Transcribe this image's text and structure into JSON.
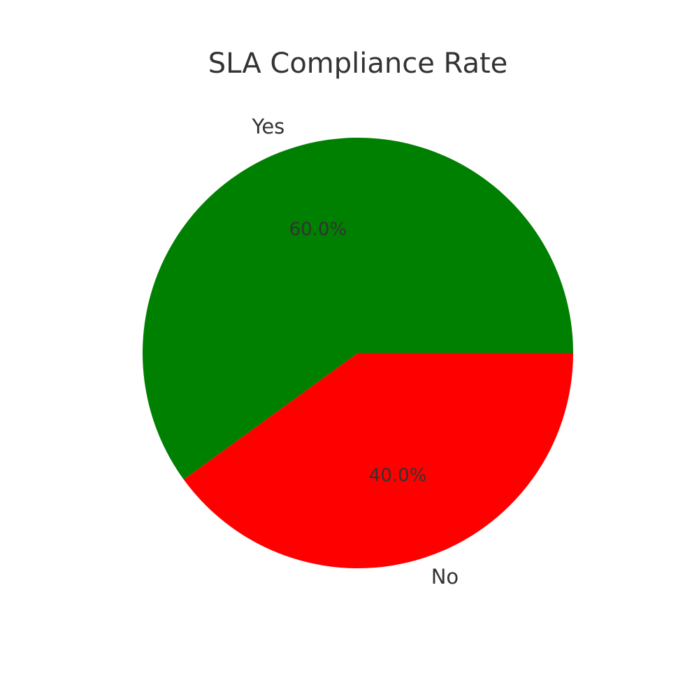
{
  "chart_data": {
    "type": "pie",
    "title": "SLA Compliance Rate",
    "categories": [
      "Yes",
      "No"
    ],
    "values": [
      60.0,
      40.0
    ],
    "percent_labels": [
      "60.0%",
      "40.0%"
    ],
    "colors": [
      "#008000",
      "#ff0000"
    ],
    "start_angle_deg": 0,
    "direction": "counterclockwise",
    "legend": "none"
  }
}
